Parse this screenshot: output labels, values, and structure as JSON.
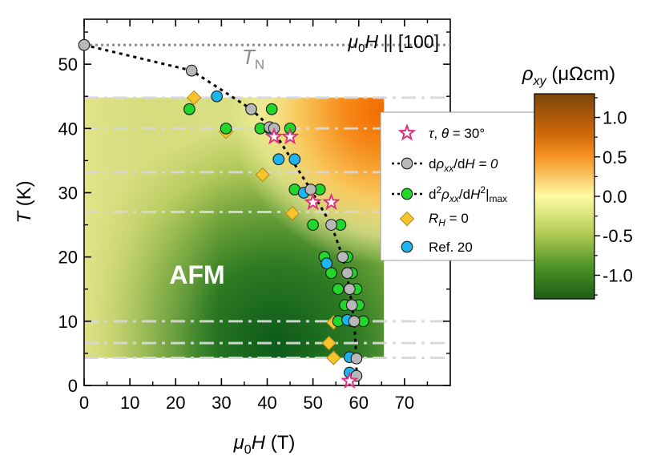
{
  "chart_data": {
    "type": "scatter",
    "x_axis": {
      "label_prefix": "μ",
      "label_sub": "0",
      "label_main": "H",
      "label_unit": " (T)",
      "range": [
        0,
        80
      ],
      "ticks": [
        0,
        10,
        20,
        30,
        40,
        50,
        60,
        70
      ]
    },
    "y_axis": {
      "label_main": "T",
      "label_unit": " (K)",
      "range": [
        0,
        57
      ],
      "ticks": [
        0,
        10,
        20,
        30,
        40,
        50
      ]
    },
    "field_annotation": {
      "prefix": "μ",
      "sub": "0",
      "main": "H",
      "rest": " || [100]"
    },
    "tn_label": {
      "main": "T",
      "sub": "N"
    },
    "tn_value": 53,
    "phase_label": "AFM",
    "heatmap_region": {
      "h_range": [
        0,
        65.5
      ],
      "t_range": [
        4.3,
        44.8
      ]
    },
    "dashdot_temperatures": [
      44.8,
      40,
      33.2,
      27,
      10,
      6.6,
      4.3
    ],
    "series": [
      {
        "name": "tau_theta30",
        "legend_label": "τ, θ = 30°",
        "marker": "star",
        "color": "#e0307f",
        "points": [
          [
            41.5,
            38.7
          ],
          [
            45.0,
            38.7
          ],
          [
            50.0,
            28.5
          ],
          [
            54.0,
            28.5
          ],
          [
            58.0,
            0.7
          ]
        ]
      },
      {
        "name": "drho_dH_zero",
        "legend_label": "dρxx/dH = 0",
        "marker": "circle",
        "color": "#b8b8b8",
        "points": [
          [
            0,
            53
          ],
          [
            23.5,
            49
          ],
          [
            36.5,
            43
          ],
          [
            40.5,
            40.2
          ],
          [
            41.5,
            40
          ],
          [
            49.5,
            30.5
          ],
          [
            54,
            25
          ],
          [
            56.5,
            20
          ],
          [
            57.5,
            17.5
          ],
          [
            58,
            15
          ],
          [
            58.5,
            12.5
          ],
          [
            59,
            10
          ],
          [
            59.5,
            4.2
          ],
          [
            59.5,
            1.5
          ]
        ],
        "trend": [
          [
            0,
            53
          ],
          [
            23.5,
            49
          ],
          [
            36.5,
            43
          ],
          [
            41,
            40
          ],
          [
            45.5,
            35
          ],
          [
            49.5,
            30.5
          ],
          [
            54,
            25
          ],
          [
            56.5,
            20
          ],
          [
            58,
            15
          ],
          [
            59,
            10
          ],
          [
            59.5,
            4.2
          ],
          [
            59.5,
            1.5
          ]
        ]
      },
      {
        "name": "d2rho_dH2_max",
        "legend_label": "d²ρxx/dH²|max",
        "marker": "circle",
        "color": "#21d82a",
        "points": [
          [
            23,
            43
          ],
          [
            31,
            40
          ],
          [
            41,
            43
          ],
          [
            45,
            40
          ],
          [
            38.5,
            40
          ],
          [
            46,
            30.5
          ],
          [
            50,
            25
          ],
          [
            51.5,
            30.5
          ],
          [
            52.5,
            20
          ],
          [
            54,
            17.5
          ],
          [
            56,
            25
          ],
          [
            55.5,
            15
          ],
          [
            57.5,
            20
          ],
          [
            58.5,
            17.5
          ],
          [
            59.5,
            15
          ],
          [
            58.5,
            10
          ],
          [
            57,
            12.5
          ],
          [
            60,
            12.5
          ],
          [
            61,
            10
          ],
          [
            55.5,
            10
          ]
        ]
      },
      {
        "name": "rh_zero",
        "legend_label": "RH = 0",
        "marker": "diamond",
        "color": "#f7c42e",
        "points": [
          [
            24,
            44.8
          ],
          [
            31,
            39.5
          ],
          [
            39,
            32.8
          ],
          [
            45.5,
            26.8
          ],
          [
            54.5,
            9.8
          ],
          [
            53.5,
            6.6
          ],
          [
            54.5,
            4.3
          ]
        ]
      },
      {
        "name": "ref20",
        "legend_label": "Ref. 20",
        "marker": "circle",
        "color": "#1eb4ef",
        "points": [
          [
            29,
            45
          ],
          [
            40.5,
            40
          ],
          [
            42.5,
            35.2
          ],
          [
            46,
            35.2
          ],
          [
            48,
            30
          ],
          [
            53,
            19
          ],
          [
            57.5,
            10.2
          ],
          [
            58,
            4.4
          ],
          [
            58,
            2
          ]
        ]
      }
    ],
    "colorbar": {
      "label_main": "ρ",
      "label_sub": "xy",
      "label_unit": " (μΩcm)",
      "range": [
        -1.3,
        1.3
      ],
      "ticks": [
        1.0,
        0.5,
        0.0,
        -0.5,
        -1.0
      ],
      "tick_labels": [
        "1.0",
        "0.5",
        "0.0",
        "-0.5",
        "-1.0"
      ],
      "colors": [
        "#7d4508",
        "#f17a0e",
        "#fefba6",
        "#b3cc55",
        "#1b5e16"
      ]
    }
  }
}
